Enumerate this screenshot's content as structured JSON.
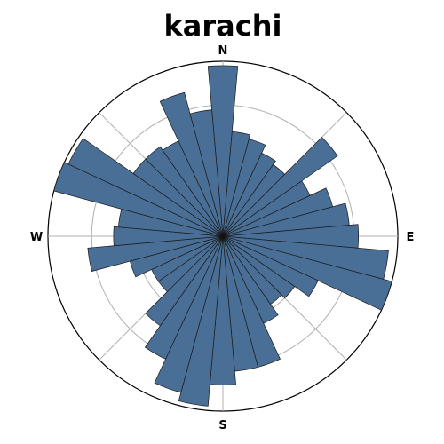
{
  "chart_data": {
    "type": "polar-bar",
    "title": "karachi",
    "direction_labels": [
      "N",
      "E",
      "S",
      "W"
    ],
    "bar_color": "#4a6f97",
    "edge_color": "#1a1a1a",
    "grid": true,
    "r_max": 4.0,
    "r_gridlines": [
      1,
      2,
      3,
      4
    ],
    "start_angle_deg": 0,
    "rotation": "clockwise",
    "sector_count": 36,
    "values": [
      3.9,
      2.4,
      2.3,
      2.1,
      2.0,
      3.2,
      2.2,
      2.6,
      2.9,
      3.1,
      3.8,
      4.0,
      2.4,
      2.0,
      1.9,
      2.2,
      3.1,
      3.1,
      3.4,
      3.9,
      3.7,
      3.1,
      2.5,
      1.8,
      1.8,
      2.2,
      3.1,
      2.5,
      2.4,
      4.0,
      3.9,
      2.5,
      2.5,
      2.4,
      3.4,
      2.9
    ]
  }
}
